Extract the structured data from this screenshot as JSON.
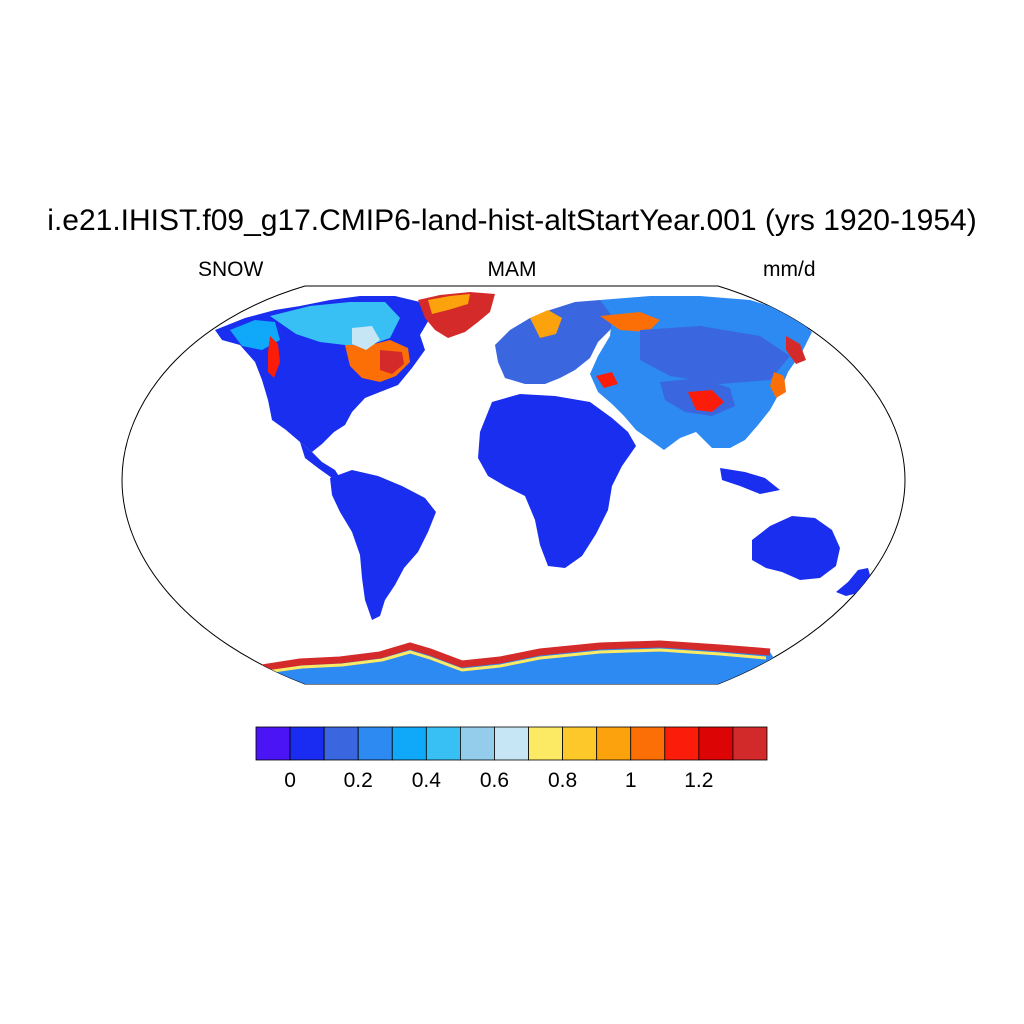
{
  "title": "i.e21.IHIST.f09_g17.CMIP6-land-hist-altStartYear.001 (yrs 1920-1954)",
  "subtitle_left": "SNOW",
  "subtitle_center": "MAM",
  "subtitle_right": "mm/d",
  "colors": {
    "land_default": "#1a2ef0",
    "background": "#ffffff"
  },
  "colorbar": {
    "colors": [
      "#4a14f5",
      "#1b2cf2",
      "#3a66e0",
      "#2d8af2",
      "#10a8f8",
      "#38c0f5",
      "#94cdec",
      "#c6e6f6",
      "#fcea64",
      "#fdc82a",
      "#fca20c",
      "#fc6e06",
      "#fc1c0a",
      "#dc0404",
      "#d22a2a"
    ],
    "tick_labels": [
      "0",
      "0.2",
      "0.4",
      "0.6",
      "0.8",
      "1",
      "1.2"
    ],
    "tick_values": [
      0,
      0.2,
      0.4,
      0.6,
      0.8,
      1.0,
      1.2
    ]
  }
}
